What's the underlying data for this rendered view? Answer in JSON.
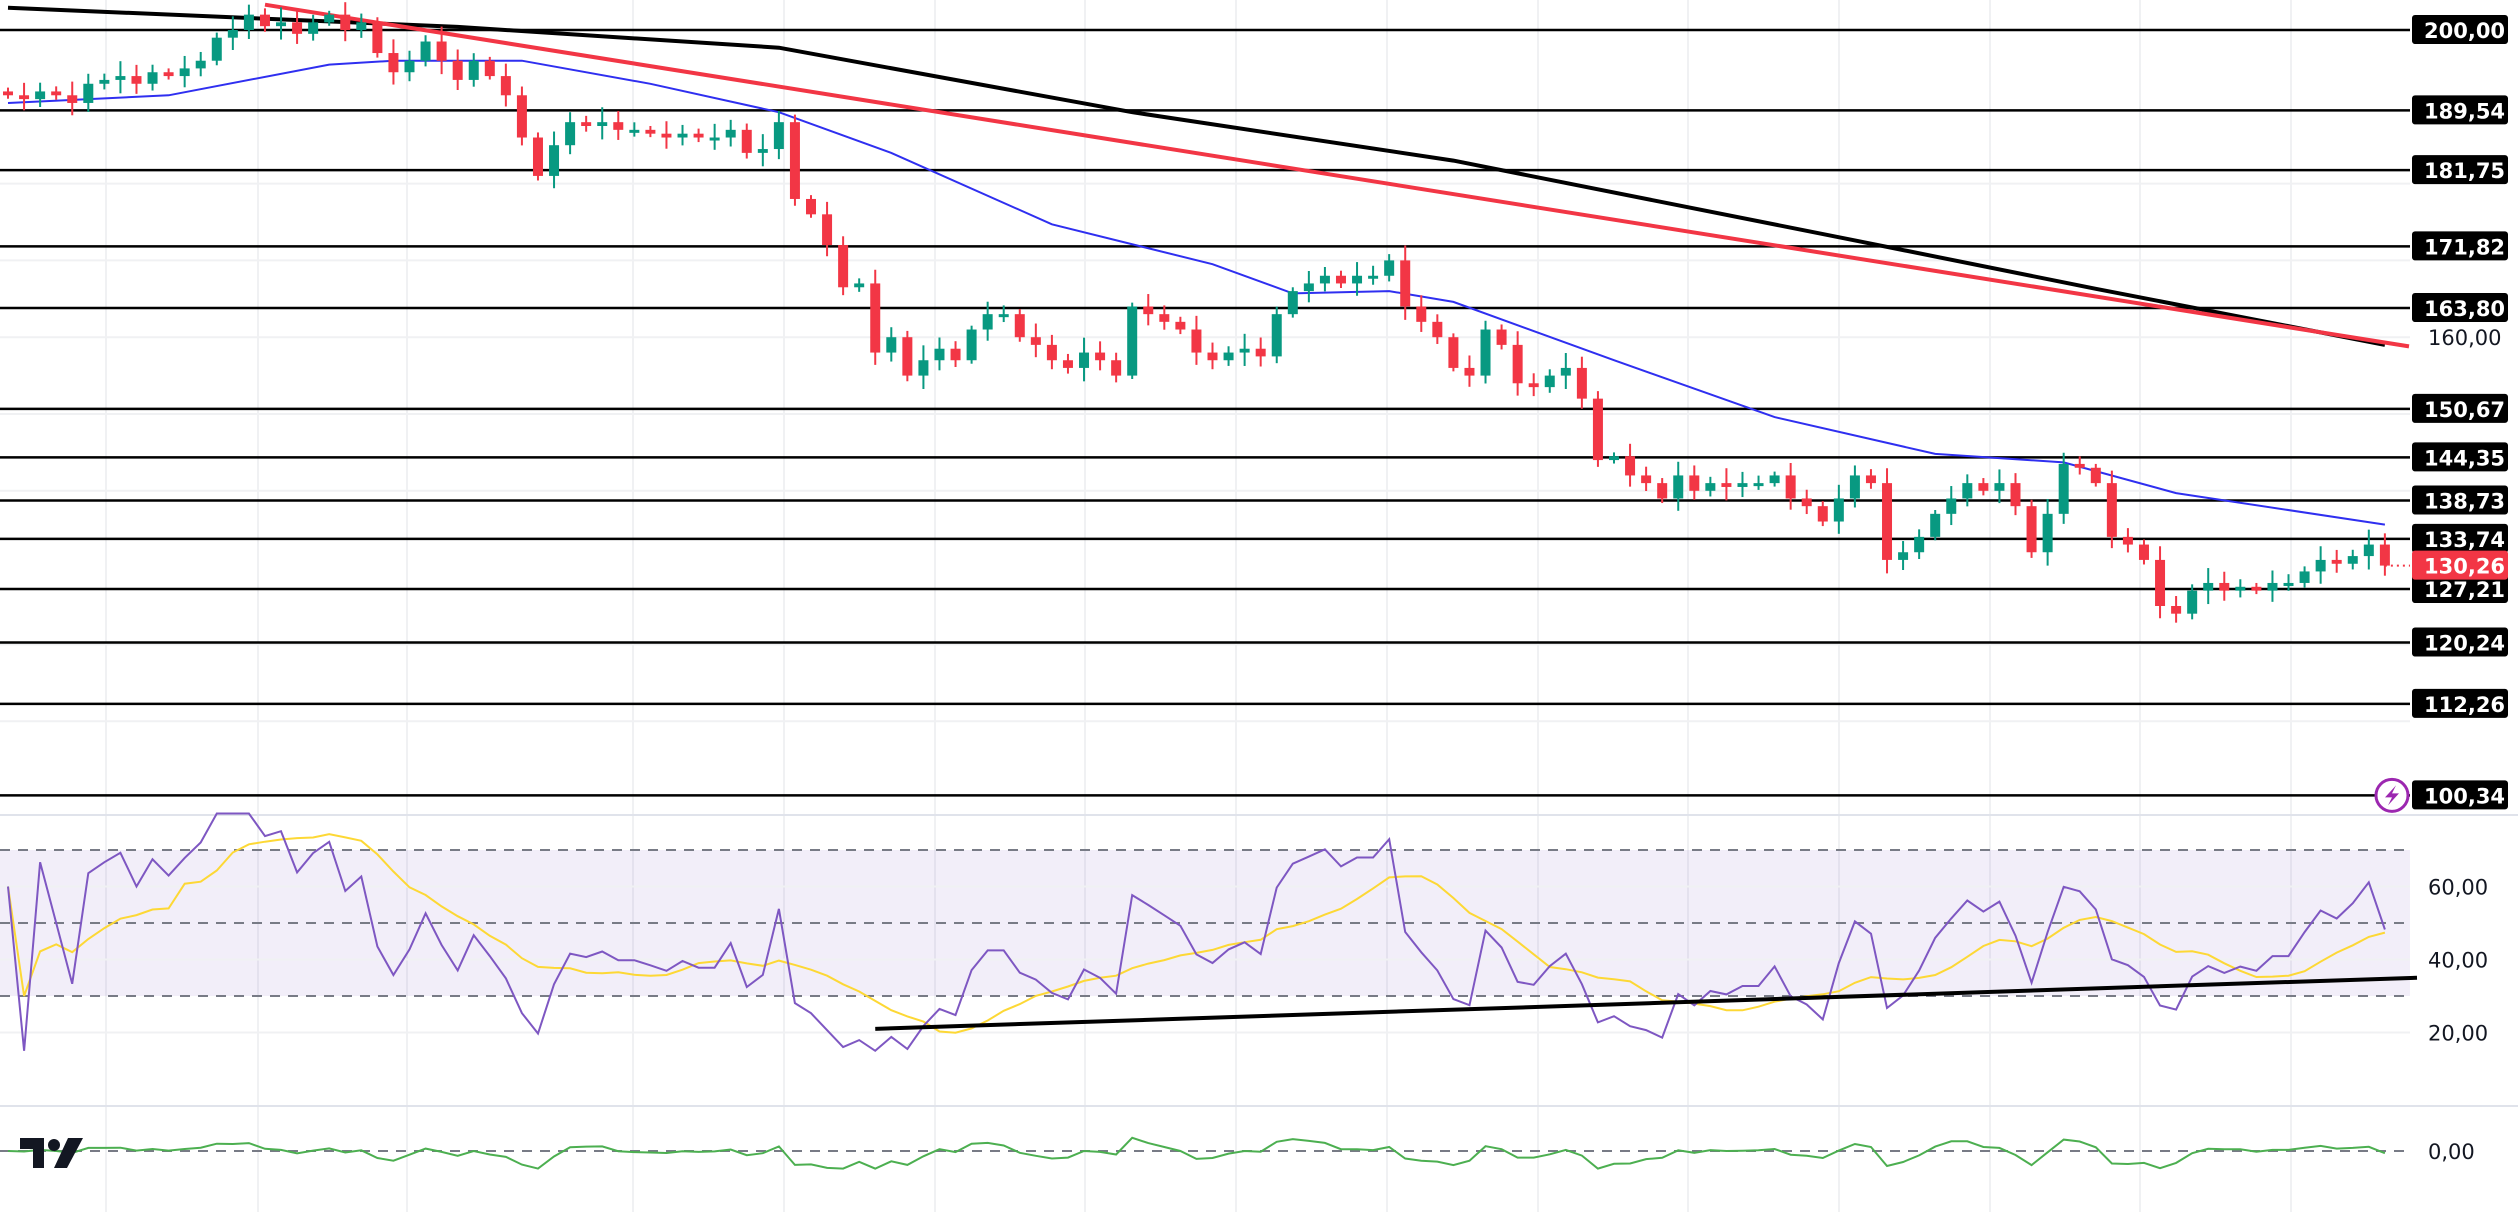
{
  "colors": {
    "up": "#089981",
    "down": "#f23645",
    "ma_fast": "#2f2ff0",
    "ma_slow": "#000000",
    "trendline": "#f23645",
    "rsi": "#7e57c2",
    "rsi_ma": "#fdd835",
    "osc": "#4caf50",
    "alert_icon": "#9c27b0"
  },
  "price_axis": {
    "visible_labels": [
      {
        "value": 160,
        "text": "160,00"
      }
    ]
  },
  "levels": [
    {
      "value": 200.0,
      "text": "200,00"
    },
    {
      "value": 189.54,
      "text": "189,54"
    },
    {
      "value": 181.75,
      "text": "181,75"
    },
    {
      "value": 171.82,
      "text": "171,82"
    },
    {
      "value": 163.8,
      "text": "163,80"
    },
    {
      "value": 150.67,
      "text": "150,67"
    },
    {
      "value": 144.35,
      "text": "144,35"
    },
    {
      "value": 138.73,
      "text": "138,73"
    },
    {
      "value": 133.74,
      "text": "133,74"
    },
    {
      "value": 127.21,
      "text": "127,21"
    },
    {
      "value": 120.24,
      "text": "120,24"
    },
    {
      "value": 112.26,
      "text": "112,26"
    },
    {
      "value": 100.34,
      "text": "100,34"
    }
  ],
  "current_price": {
    "value": 130.26,
    "text": "130,26"
  },
  "rsi_axis": [
    {
      "value": 60,
      "text": "60,00"
    },
    {
      "value": 40,
      "text": "40,00"
    },
    {
      "value": 20,
      "text": "20,00"
    }
  ],
  "osc_axis": [
    {
      "value": 0,
      "text": "0,00"
    }
  ],
  "logo": {
    "text": "TradingView"
  },
  "chart_data": {
    "type": "candlestick",
    "closes": [
      191.5,
      191,
      192,
      191.5,
      190.5,
      193,
      193.5,
      194,
      193,
      194.5,
      194,
      195,
      196,
      199,
      200,
      202,
      200.5,
      201,
      199.5,
      201,
      202,
      200,
      201,
      197,
      194.5,
      196,
      198.5,
      196,
      193.5,
      196,
      194,
      191.5,
      186,
      181,
      185,
      188,
      187.5,
      188,
      187,
      187,
      186.5,
      186,
      186.5,
      186,
      186,
      187,
      184,
      184.5,
      188,
      178,
      176,
      172,
      166.5,
      167,
      158,
      160,
      155,
      157,
      158.5,
      157,
      161,
      163,
      163,
      160,
      159,
      157,
      156,
      158,
      157,
      155,
      164,
      163,
      162,
      161,
      158,
      157,
      158,
      158.5,
      157.5,
      163,
      166,
      167,
      168,
      167,
      168,
      168,
      170,
      164,
      162,
      160,
      156,
      155,
      161,
      159,
      154,
      153.5,
      155,
      156,
      152,
      144,
      144.5,
      142,
      141,
      139,
      142,
      140,
      141,
      140.5,
      141,
      141,
      142,
      139,
      138,
      136,
      139,
      142,
      141,
      131,
      132,
      134,
      137,
      139,
      141,
      140,
      141,
      138,
      132,
      137,
      143.5,
      143,
      141,
      134,
      133,
      131,
      125,
      124,
      127,
      128,
      127,
      127.5,
      127,
      128,
      128,
      129.5,
      131,
      130.5,
      131.5,
      133,
      130.26
    ],
    "ma_fast": [
      [
        0,
        190.5
      ],
      [
        10,
        191.5
      ],
      [
        20,
        195.5
      ],
      [
        24,
        196
      ],
      [
        32,
        196
      ],
      [
        40,
        193
      ],
      [
        48,
        189.3
      ],
      [
        55,
        184
      ],
      [
        65,
        174.7
      ],
      [
        75,
        169.5
      ],
      [
        80,
        165.7
      ],
      [
        86,
        166
      ],
      [
        90,
        164.6
      ],
      [
        100,
        157
      ],
      [
        110,
        149.6
      ],
      [
        120,
        144.8
      ],
      [
        128,
        143.7
      ],
      [
        135,
        139.7
      ],
      [
        148,
        135.6
      ]
    ],
    "ma_slow": [
      [
        0,
        202.9
      ],
      [
        28,
        200.4
      ],
      [
        48,
        197.7
      ],
      [
        70,
        189.3
      ],
      [
        90,
        183
      ],
      [
        115,
        172.6
      ],
      [
        130,
        166.3
      ],
      [
        148,
        159
      ]
    ],
    "trendline": [
      [
        16,
        203.3
      ],
      [
        149.5,
        158.8
      ]
    ],
    "rsi_trendline": [
      [
        54,
        21
      ],
      [
        150,
        35
      ]
    ],
    "rsi_levels": [
      70,
      50,
      30
    ],
    "osc_zero": 0
  }
}
